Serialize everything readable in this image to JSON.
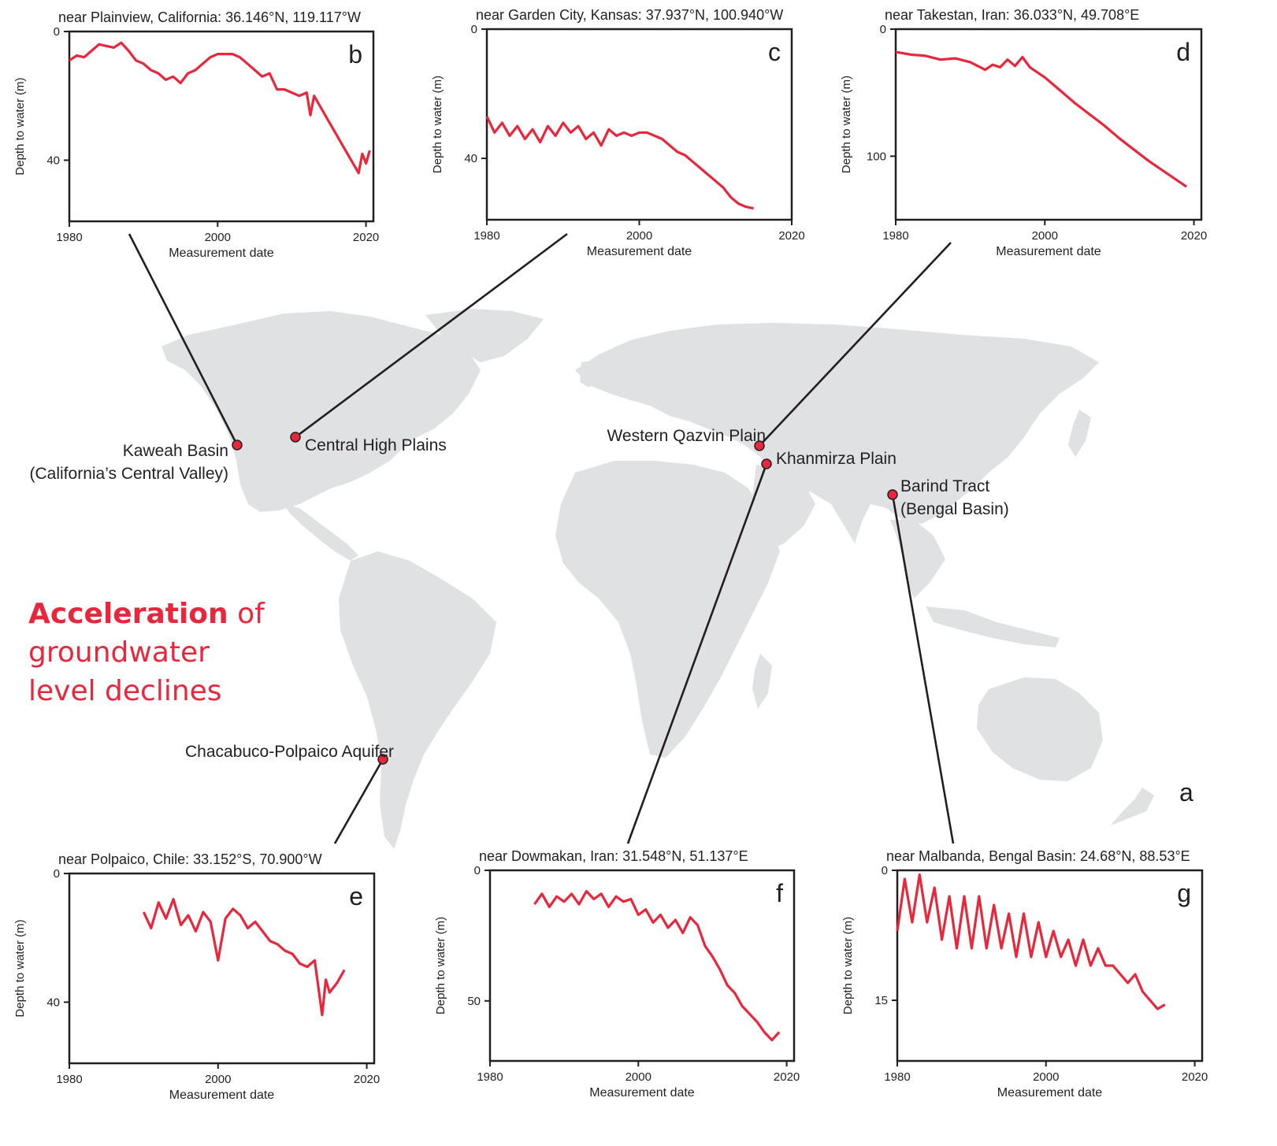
{
  "headline": {
    "bold": "Acceleration",
    "rest_line1": " of",
    "line2": "groundwater",
    "line3": "level declines"
  },
  "map_panel_letter": "a",
  "colors": {
    "series": "#e8273c",
    "map_land": "#e0e1e3",
    "marker_stroke": "#231f20",
    "axes": "#231f20"
  },
  "map_sites": [
    {
      "name": "kaweah",
      "label_lines": [
        "Kaweah Basin",
        "(California’s Central Valley)"
      ]
    },
    {
      "name": "central-high-plains",
      "label_lines": [
        "Central High Plains"
      ]
    },
    {
      "name": "western-qazvin",
      "label_lines": [
        "Western Qazvin Plain"
      ]
    },
    {
      "name": "khanmirza",
      "label_lines": [
        "Khanmirza Plain"
      ]
    },
    {
      "name": "barind",
      "label_lines": [
        "Barind Tract",
        "(Bengal Basin)"
      ]
    },
    {
      "name": "chacabuco",
      "label_lines": [
        "Chacabuco-Polpaico Aquifer"
      ]
    }
  ],
  "chart_data": [
    {
      "type": "line",
      "panel": "b",
      "title": "near Plainview, California: 36.146°N, 119.117°W",
      "xlabel": "Measurement date",
      "ylabel": "Depth to water (m)",
      "xlim": [
        1980,
        2021
      ],
      "ylim": [
        0,
        59
      ],
      "y_inverted": true,
      "xticks": [
        1980,
        2000,
        2020
      ],
      "yticks": [
        0,
        40
      ],
      "series": [
        {
          "x": [
            1980,
            1981,
            1982,
            1983,
            1984,
            1985,
            1986,
            1987,
            1988,
            1989,
            1990,
            1991,
            1992,
            1993,
            1994,
            1995,
            1996,
            1997,
            1998,
            1999,
            2000,
            2001,
            2002,
            2003,
            2004,
            2005,
            2006,
            2007,
            2008,
            2009,
            2010,
            2011,
            2012,
            2012.5,
            2013,
            2014,
            2015,
            2016,
            2017,
            2018,
            2019,
            2019.5,
            2020,
            2020.5
          ],
          "y": [
            9,
            7.5,
            8,
            6,
            4,
            4.5,
            5,
            3.5,
            6,
            9,
            10,
            12,
            13,
            15,
            14,
            16,
            13,
            12,
            10,
            8,
            7,
            7,
            7,
            8,
            10,
            12,
            14,
            13,
            18,
            18,
            19,
            20,
            19,
            26,
            20,
            24,
            28,
            32,
            36,
            40,
            44,
            38,
            41,
            37
          ]
        }
      ]
    },
    {
      "type": "line",
      "panel": "c",
      "title": "near Garden City, Kansas: 37.937°N, 100.940°W",
      "xlabel": "Measurement date",
      "ylabel": "Depth to water (m)",
      "xlim": [
        1980,
        2020
      ],
      "ylim": [
        0,
        59
      ],
      "y_inverted": true,
      "xticks": [
        1980,
        2000,
        2020
      ],
      "yticks": [
        0,
        40
      ],
      "series": [
        {
          "x": [
            1980,
            1981,
            1982,
            1983,
            1984,
            1985,
            1986,
            1987,
            1988,
            1989,
            1990,
            1991,
            1992,
            1993,
            1994,
            1995,
            1996,
            1997,
            1998,
            1999,
            2000,
            2001,
            2002,
            2003,
            2004,
            2005,
            2006,
            2007,
            2008,
            2009,
            2010,
            2011,
            2012,
            2013,
            2014,
            2015
          ],
          "y": [
            27,
            32,
            29,
            33,
            30,
            34,
            31,
            35,
            30,
            33,
            29,
            32,
            30,
            34,
            32,
            36,
            31,
            33,
            32,
            33,
            32,
            32,
            33,
            34,
            36,
            38,
            39,
            41,
            43,
            45,
            47,
            49,
            52,
            54,
            55,
            55.5
          ]
        }
      ]
    },
    {
      "type": "line",
      "panel": "d",
      "title": "near Takestan, Iran: 36.033°N, 49.708°E",
      "xlabel": "Measurement date",
      "ylabel": "Depth to water (m)",
      "xlim": [
        1980,
        2021
      ],
      "ylim": [
        0,
        150
      ],
      "y_inverted": true,
      "xticks": [
        1980,
        2000,
        2020
      ],
      "yticks": [
        0,
        100
      ],
      "series": [
        {
          "x": [
            1980,
            1982,
            1984,
            1986,
            1988,
            1990,
            1992,
            1993,
            1994,
            1995,
            1996,
            1997,
            1998,
            2000,
            2002,
            2004,
            2006,
            2008,
            2010,
            2012,
            2014,
            2016,
            2018,
            2019
          ],
          "y": [
            18,
            20,
            21,
            24,
            23,
            26,
            32,
            28,
            30,
            24,
            29,
            22,
            30,
            38,
            48,
            58,
            67,
            76,
            86,
            95,
            104,
            112,
            120,
            124
          ]
        }
      ]
    },
    {
      "type": "line",
      "panel": "e",
      "title": "near Polpaico, Chile: 33.152°S, 70.900°W",
      "xlabel": "Measurement date",
      "ylabel": "Depth to water (m)",
      "xlim": [
        1980,
        2021
      ],
      "ylim": [
        0,
        59
      ],
      "y_inverted": true,
      "xticks": [
        1980,
        2000,
        2020
      ],
      "yticks": [
        0,
        40
      ],
      "series": [
        {
          "x": [
            1990,
            1991,
            1992,
            1993,
            1994,
            1995,
            1996,
            1997,
            1998,
            1999,
            2000,
            2001,
            2002,
            2003,
            2004,
            2005,
            2006,
            2007,
            2008,
            2009,
            2010,
            2011,
            2012,
            2013,
            2014,
            2014.5,
            2015,
            2016,
            2017
          ],
          "y": [
            12,
            17,
            9,
            14,
            8,
            16,
            13,
            18,
            12,
            15,
            27,
            14,
            11,
            13,
            17,
            15,
            18,
            21,
            22,
            24,
            25,
            28,
            29,
            27,
            44,
            33,
            37,
            34,
            30
          ]
        }
      ]
    },
    {
      "type": "line",
      "panel": "f",
      "title": "near Dowmakan, Iran: 31.548°N, 51.137°E",
      "xlabel": "Measurement date",
      "ylabel": "Depth to water (m)",
      "xlim": [
        1980,
        2021
      ],
      "ylim": [
        0,
        73
      ],
      "y_inverted": true,
      "xticks": [
        1980,
        2000,
        2020
      ],
      "yticks": [
        0,
        50
      ],
      "series": [
        {
          "x": [
            1986,
            1987,
            1988,
            1989,
            1990,
            1991,
            1992,
            1993,
            1994,
            1995,
            1996,
            1997,
            1998,
            1999,
            2000,
            2001,
            2002,
            2003,
            2004,
            2005,
            2006,
            2007,
            2008,
            2009,
            2010,
            2011,
            2012,
            2013,
            2014,
            2015,
            2016,
            2017,
            2018,
            2019
          ],
          "y": [
            13,
            9,
            14,
            10,
            12,
            9,
            13,
            8,
            11,
            9,
            14,
            10,
            12,
            11,
            17,
            15,
            20,
            17,
            22,
            19,
            24,
            18,
            21,
            29,
            33,
            38,
            44,
            47,
            52,
            55,
            58,
            62,
            65,
            62
          ]
        }
      ]
    },
    {
      "type": "line",
      "panel": "g",
      "title": "near Malbanda, Bengal Basin: 24.68°N, 88.53°E",
      "xlabel": "Measurement date",
      "ylabel": "Depth to water (m)",
      "xlim": [
        1980,
        2021
      ],
      "ylim": [
        0,
        22
      ],
      "y_inverted": true,
      "xticks": [
        1980,
        2000,
        2020
      ],
      "yticks": [
        0,
        15
      ],
      "series": [
        {
          "x": [
            1980,
            1981,
            1982,
            1983,
            1984,
            1985,
            1986,
            1987,
            1988,
            1989,
            1990,
            1991,
            1992,
            1993,
            1994,
            1995,
            1996,
            1997,
            1998,
            1999,
            2000,
            2001,
            2002,
            2003,
            2004,
            2005,
            2006,
            2007,
            2008,
            2009,
            2010,
            2011,
            2012,
            2013,
            2014,
            2015,
            2016
          ],
          "y": [
            7,
            1,
            6,
            0.5,
            6,
            2,
            8,
            3,
            9,
            3,
            9,
            3,
            9,
            4,
            9,
            5,
            10,
            5,
            10,
            6,
            10,
            7,
            10,
            8,
            11,
            8,
            11,
            9,
            11,
            11,
            12,
            13,
            12,
            14,
            15,
            16,
            15.5
          ]
        }
      ]
    }
  ]
}
